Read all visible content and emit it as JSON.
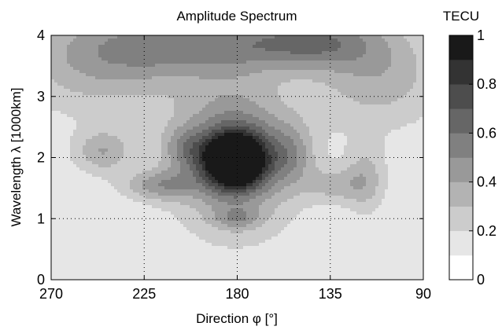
{
  "chart_data": {
    "type": "heatmap",
    "title": "Amplitude Spectrum",
    "xlabel": "Direction φ [°]",
    "ylabel": "Wavelength λ [1000km]",
    "colorbar_label": "TECU",
    "x_reversed": true,
    "xlim": [
      270,
      90
    ],
    "ylim": [
      0,
      4
    ],
    "x_ticks": [
      270,
      225,
      180,
      135,
      90
    ],
    "x_tick_labels": [
      "270",
      "225",
      "180",
      "135",
      "90"
    ],
    "y_ticks": [
      0,
      1,
      2,
      3,
      4
    ],
    "y_tick_labels": [
      "0",
      "1",
      "2",
      "3",
      "4"
    ],
    "colorbar_range": [
      0,
      1
    ],
    "colorbar_ticks": [
      0,
      0.2,
      0.4,
      0.6,
      0.8,
      1
    ],
    "colorbar_tick_labels": [
      "0",
      "0.2",
      "0.4",
      "0.6",
      "0.8",
      "1"
    ],
    "contour_levels": [
      0,
      0.1,
      0.2,
      0.3,
      0.4,
      0.5,
      0.6,
      0.7,
      0.8,
      0.9,
      1.0
    ],
    "grid": "dotted",
    "colormap": "white to black grayscale",
    "features": [
      {
        "direction": 181,
        "wavelength": 1.95,
        "amplitude": 1.0,
        "width_dir": 10,
        "width_wl": 0.3
      },
      {
        "direction": 181,
        "wavelength": 2.05,
        "amplitude": 0.5,
        "width_dir": 20,
        "width_wl": 0.8
      },
      {
        "direction": 195,
        "wavelength": 3.85,
        "amplitude": 0.35,
        "width_dir": 35,
        "width_wl": 0.35
      },
      {
        "direction": 143,
        "wavelength": 3.9,
        "amplitude": 0.35,
        "width_dir": 22,
        "width_wl": 0.3
      },
      {
        "direction": 245,
        "wavelength": 3.6,
        "amplitude": 0.28,
        "width_dir": 30,
        "width_wl": 0.6
      },
      {
        "direction": 112,
        "wavelength": 3.35,
        "amplitude": 0.25,
        "width_dir": 22,
        "width_wl": 0.6
      },
      {
        "direction": 245,
        "wavelength": 2.1,
        "amplitude": 0.27,
        "width_dir": 10,
        "width_wl": 0.25
      },
      {
        "direction": 205,
        "wavelength": 2.15,
        "amplitude": 0.22,
        "width_dir": 8,
        "width_wl": 0.25
      },
      {
        "direction": 218,
        "wavelength": 1.55,
        "amplitude": 0.3,
        "width_dir": 12,
        "width_wl": 0.18
      },
      {
        "direction": 154,
        "wavelength": 2.05,
        "amplitude": 0.22,
        "width_dir": 8,
        "width_wl": 0.35
      },
      {
        "direction": 118,
        "wavelength": 1.65,
        "amplitude": 0.22,
        "width_dir": 7,
        "width_wl": 0.4
      },
      {
        "direction": 133,
        "wavelength": 1.55,
        "amplitude": 0.2,
        "width_dir": 10,
        "width_wl": 0.2
      },
      {
        "direction": 180,
        "wavelength": 1.0,
        "amplitude": 0.2,
        "width_dir": 8,
        "width_wl": 0.12
      }
    ],
    "background_level": 0.12
  }
}
